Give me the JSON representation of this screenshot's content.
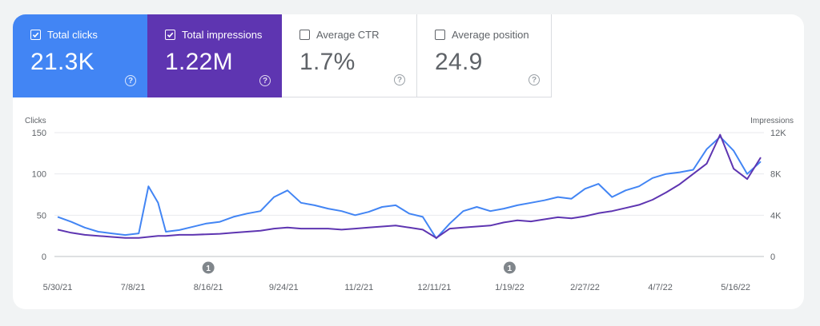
{
  "colors": {
    "clicks": "#4285f4",
    "impressions": "#5e35b1",
    "clicks_tile": "#4285f4",
    "impressions_tile": "#5e35b1"
  },
  "metrics": [
    {
      "label": "Total clicks",
      "value": "21.3K",
      "checked": true
    },
    {
      "label": "Total impressions",
      "value": "1.22M",
      "checked": true
    },
    {
      "label": "Average CTR",
      "value": "1.7%",
      "checked": false
    },
    {
      "label": "Average position",
      "value": "24.9",
      "checked": false
    }
  ],
  "help_glyph": "?",
  "annotation_label": "1",
  "chart_data": {
    "type": "line",
    "left_axis": {
      "title": "Clicks",
      "ticks": [
        "150",
        "100",
        "50",
        "0"
      ],
      "ylim": [
        0,
        150
      ]
    },
    "right_axis": {
      "title": "Impressions",
      "ticks": [
        "12K",
        "8K",
        "4K",
        "0"
      ],
      "ylim": [
        0,
        12000
      ]
    },
    "x_ticks": [
      "5/30/21",
      "7/8/21",
      "8/16/21",
      "9/24/21",
      "11/2/21",
      "12/11/21",
      "1/19/22",
      "2/27/22",
      "4/7/22",
      "5/16/22"
    ],
    "annotations": [
      {
        "date": "8/16/21",
        "label": "1"
      },
      {
        "date": "1/19/22",
        "label": "1"
      }
    ],
    "grid": true,
    "series": [
      {
        "name": "Clicks",
        "axis": "left",
        "color": "#4285f4",
        "x": [
          "5/30/21",
          "6/6/21",
          "6/13/21",
          "6/20/21",
          "6/27/21",
          "7/4/21",
          "7/11/21",
          "7/16/21",
          "7/21/21",
          "7/25/21",
          "8/1/21",
          "8/8/21",
          "8/15/21",
          "8/22/21",
          "8/29/21",
          "9/5/21",
          "9/12/21",
          "9/19/21",
          "9/26/21",
          "10/3/21",
          "10/10/21",
          "10/17/21",
          "10/24/21",
          "10/31/21",
          "11/7/21",
          "11/14/21",
          "11/21/21",
          "11/28/21",
          "12/5/21",
          "12/12/21",
          "12/19/21",
          "12/26/21",
          "1/2/22",
          "1/9/22",
          "1/16/22",
          "1/23/22",
          "1/30/22",
          "2/6/22",
          "2/13/22",
          "2/20/22",
          "2/27/22",
          "3/6/22",
          "3/13/22",
          "3/20/22",
          "3/27/22",
          "4/3/22",
          "4/10/22",
          "4/17/22",
          "4/24/22",
          "5/1/22",
          "5/8/22",
          "5/15/22",
          "5/22/22",
          "5/29/22"
        ],
        "values": [
          48,
          42,
          35,
          30,
          28,
          26,
          28,
          85,
          65,
          30,
          32,
          36,
          40,
          42,
          48,
          52,
          55,
          72,
          80,
          65,
          62,
          58,
          55,
          50,
          54,
          60,
          62,
          52,
          48,
          22,
          40,
          55,
          60,
          55,
          58,
          62,
          65,
          68,
          72,
          70,
          82,
          88,
          72,
          80,
          85,
          95,
          100,
          102,
          105,
          130,
          145,
          128,
          100,
          115
        ]
      },
      {
        "name": "Impressions",
        "axis": "right",
        "color": "#5e35b1",
        "x": [
          "5/30/21",
          "6/6/21",
          "6/13/21",
          "6/20/21",
          "6/27/21",
          "7/4/21",
          "7/11/21",
          "7/16/21",
          "7/21/21",
          "7/25/21",
          "8/1/21",
          "8/8/21",
          "8/15/21",
          "8/22/21",
          "8/29/21",
          "9/5/21",
          "9/12/21",
          "9/19/21",
          "9/26/21",
          "10/3/21",
          "10/10/21",
          "10/17/21",
          "10/24/21",
          "10/31/21",
          "11/7/21",
          "11/14/21",
          "11/21/21",
          "11/28/21",
          "12/5/21",
          "12/12/21",
          "12/19/21",
          "12/26/21",
          "1/2/22",
          "1/9/22",
          "1/16/22",
          "1/23/22",
          "1/30/22",
          "2/6/22",
          "2/13/22",
          "2/20/22",
          "2/27/22",
          "3/6/22",
          "3/13/22",
          "3/20/22",
          "3/27/22",
          "4/3/22",
          "4/10/22",
          "4/17/22",
          "4/24/22",
          "5/1/22",
          "5/8/22",
          "5/15/22",
          "5/22/22",
          "5/29/22"
        ],
        "values": [
          2600,
          2300,
          2100,
          2000,
          1900,
          1800,
          1800,
          1900,
          2000,
          2000,
          2100,
          2100,
          2150,
          2200,
          2300,
          2400,
          2500,
          2700,
          2800,
          2700,
          2700,
          2700,
          2600,
          2700,
          2800,
          2900,
          3000,
          2800,
          2600,
          1800,
          2700,
          2800,
          2900,
          3000,
          3300,
          3500,
          3400,
          3600,
          3800,
          3700,
          3900,
          4200,
          4400,
          4700,
          5000,
          5500,
          6200,
          7000,
          8000,
          9000,
          11800,
          8500,
          7500,
          9600
        ]
      }
    ]
  }
}
